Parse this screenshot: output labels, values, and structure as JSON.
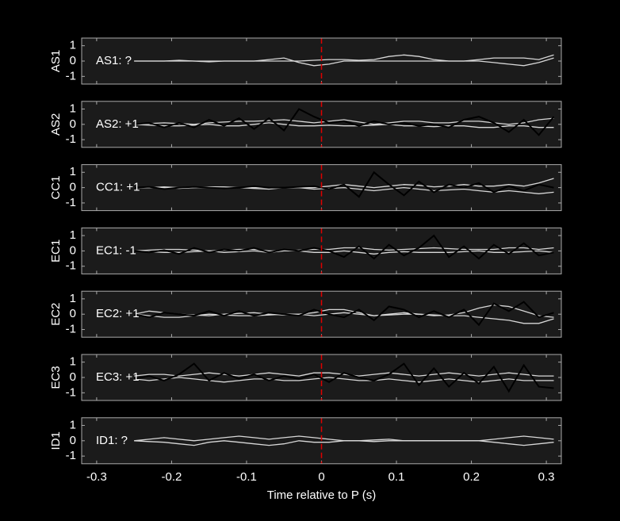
{
  "chart_data": [
    {
      "type": "line",
      "ylabel": "AS1",
      "annotation": "AS1: ?",
      "annotation_color": "#8c8c8c",
      "marker_x": 0,
      "xlim": [
        -0.32,
        0.32
      ],
      "xticks": [
        -0.3,
        -0.2,
        -0.1,
        0,
        0.1,
        0.2,
        0.3
      ],
      "ylim": [
        -1.5,
        1.5
      ],
      "yticks": [
        -1,
        0,
        1
      ],
      "x": [
        -0.25,
        -0.23,
        -0.21,
        -0.19,
        -0.17,
        -0.15,
        -0.13,
        -0.11,
        -0.09,
        -0.07,
        -0.05,
        -0.03,
        -0.01,
        0.01,
        0.03,
        0.05,
        0.07,
        0.09,
        0.11,
        0.13,
        0.15,
        0.17,
        0.19,
        0.21,
        0.23,
        0.25,
        0.27,
        0.29,
        0.31
      ],
      "series": [
        {
          "color": "#d8d8d8",
          "values": [
            0,
            0,
            0,
            0,
            0,
            0,
            0,
            0,
            0,
            0,
            0,
            0,
            0.05,
            0.1,
            0.1,
            0.05,
            0.1,
            0.3,
            0.4,
            0.3,
            0.1,
            0,
            0,
            0.1,
            0.2,
            0.2,
            0.2,
            0.1,
            0.4
          ]
        },
        {
          "color": "#d8d8d8",
          "values": [
            0,
            0,
            0,
            0.05,
            0,
            -0.05,
            0,
            0,
            0,
            0.1,
            0.2,
            -0.1,
            -0.3,
            -0.2,
            0,
            0,
            0,
            0,
            0,
            0,
            0,
            0,
            0,
            0,
            -0.1,
            -0.2,
            -0.3,
            -0.1,
            0.2
          ]
        }
      ]
    },
    {
      "type": "line",
      "ylabel": "AS2",
      "annotation": "AS2: +1",
      "annotation_color": "#c00000",
      "marker_x": 0,
      "xlim": [
        -0.32,
        0.32
      ],
      "xticks": [
        -0.3,
        -0.2,
        -0.1,
        0,
        0.1,
        0.2,
        0.3
      ],
      "ylim": [
        -1.5,
        1.5
      ],
      "yticks": [
        -1,
        0,
        1
      ],
      "x": [
        -0.25,
        -0.23,
        -0.21,
        -0.19,
        -0.17,
        -0.15,
        -0.13,
        -0.11,
        -0.09,
        -0.07,
        -0.05,
        -0.03,
        -0.01,
        0.01,
        0.03,
        0.05,
        0.07,
        0.09,
        0.11,
        0.13,
        0.15,
        0.17,
        0.19,
        0.21,
        0.23,
        0.25,
        0.27,
        0.29,
        0.31
      ],
      "series": [
        {
          "color": "#d8d8d8",
          "values": [
            0,
            0.05,
            0.1,
            0.05,
            0,
            0.1,
            0.15,
            0.2,
            0.2,
            0.25,
            0.3,
            0.2,
            0.1,
            0.2,
            0.3,
            0.15,
            0,
            0.1,
            0.2,
            0.2,
            0.1,
            0.1,
            0.2,
            0.2,
            0.1,
            0,
            0.1,
            0.3,
            0.4
          ]
        },
        {
          "color": "#d8d8d8",
          "values": [
            0,
            -0.05,
            -0.1,
            -0.1,
            -0.05,
            0,
            -0.1,
            -0.1,
            0,
            0.1,
            0,
            -0.1,
            -0.1,
            -0.05,
            -0.1,
            -0.1,
            -0.05,
            0,
            -0.1,
            -0.1,
            -0.15,
            -0.1,
            -0.1,
            -0.2,
            -0.2,
            -0.1,
            -0.1,
            -0.2,
            -0.2
          ]
        },
        {
          "color": "#000000",
          "values": [
            0,
            0.1,
            -0.2,
            0.1,
            -0.2,
            0.3,
            -0.1,
            0.4,
            -0.3,
            0.4,
            -0.4,
            1.0,
            0.5,
            0.1,
            0.2,
            -0.1,
            0.2,
            0,
            0.1,
            -0.1,
            0,
            -0.2,
            0.3,
            0.5,
            0.1,
            -0.5,
            0.3,
            -0.7,
            0.5
          ]
        }
      ]
    },
    {
      "type": "line",
      "ylabel": "CC1",
      "annotation": "CC1: +1",
      "annotation_color": "#c00000",
      "marker_x": 0,
      "xlim": [
        -0.32,
        0.32
      ],
      "xticks": [
        -0.3,
        -0.2,
        -0.1,
        0,
        0.1,
        0.2,
        0.3
      ],
      "ylim": [
        -1.5,
        1.5
      ],
      "yticks": [
        -1,
        0,
        1
      ],
      "x": [
        -0.25,
        -0.23,
        -0.21,
        -0.19,
        -0.17,
        -0.15,
        -0.13,
        -0.11,
        -0.09,
        -0.07,
        -0.05,
        -0.03,
        -0.01,
        0.01,
        0.03,
        0.05,
        0.07,
        0.09,
        0.11,
        0.13,
        0.15,
        0.17,
        0.19,
        0.21,
        0.23,
        0.25,
        0.27,
        0.29,
        0.31
      ],
      "series": [
        {
          "color": "#d8d8d8",
          "values": [
            0,
            0,
            0.05,
            0,
            0,
            0.05,
            0.05,
            0,
            0,
            0,
            0,
            0,
            0,
            0.1,
            0.2,
            0.1,
            0,
            0.1,
            0.2,
            0.15,
            0.05,
            0.1,
            0.2,
            0.1,
            0.1,
            0.2,
            0.1,
            0.3,
            0.6
          ]
        },
        {
          "color": "#d8d8d8",
          "values": [
            0,
            0,
            0,
            -0.05,
            0,
            0,
            -0.05,
            0,
            -0.05,
            -0.1,
            0,
            0,
            -0.1,
            -0.05,
            0,
            -0.1,
            -0.2,
            -0.1,
            0,
            -0.1,
            -0.2,
            -0.15,
            -0.1,
            -0.2,
            -0.3,
            -0.2,
            -0.3,
            -0.4,
            -0.3
          ]
        },
        {
          "color": "#000000",
          "values": [
            0,
            0.05,
            -0.1,
            0,
            0.05,
            0,
            -0.05,
            0,
            0.1,
            0,
            0,
            0.05,
            0.1,
            -0.1,
            0.2,
            -0.6,
            1.0,
            0.2,
            -0.5,
            0.4,
            -0.3,
            0.2,
            0,
            0.3,
            -0.3,
            0.1,
            -0.2,
            0.2,
            0
          ]
        }
      ]
    },
    {
      "type": "line",
      "ylabel": "EC1",
      "annotation": "EC1: -1",
      "annotation_color": "#1414c8",
      "marker_x": 0,
      "xlim": [
        -0.32,
        0.32
      ],
      "xticks": [
        -0.3,
        -0.2,
        -0.1,
        0,
        0.1,
        0.2,
        0.3
      ],
      "ylim": [
        -1.5,
        1.5
      ],
      "yticks": [
        -1,
        0,
        1
      ],
      "x": [
        -0.25,
        -0.23,
        -0.21,
        -0.19,
        -0.17,
        -0.15,
        -0.13,
        -0.11,
        -0.09,
        -0.07,
        -0.05,
        -0.03,
        -0.01,
        0.01,
        0.03,
        0.05,
        0.07,
        0.09,
        0.11,
        0.13,
        0.15,
        0.17,
        0.19,
        0.21,
        0.23,
        0.25,
        0.27,
        0.29,
        0.31
      ],
      "series": [
        {
          "color": "#d8d8d8",
          "values": [
            0,
            0.05,
            0.1,
            0.1,
            0.05,
            0,
            0.05,
            0.1,
            0.1,
            0,
            0,
            0.05,
            0.1,
            0.1,
            0.2,
            0.2,
            0.1,
            0.05,
            0.1,
            0.15,
            0.2,
            0.15,
            0.1,
            0.1,
            0.1,
            0.2,
            0.2,
            0.1,
            0.2
          ]
        },
        {
          "color": "#d8d8d8",
          "values": [
            0,
            -0.05,
            -0.1,
            -0.1,
            -0.05,
            0,
            -0.1,
            -0.05,
            0,
            -0.1,
            0,
            0,
            -0.1,
            -0.1,
            0,
            -0.1,
            -0.2,
            -0.1,
            -0.05,
            -0.1,
            -0.1,
            -0.1,
            -0.05,
            0,
            -0.1,
            -0.1,
            -0.05,
            0,
            -0.1
          ]
        },
        {
          "color": "#000000",
          "values": [
            0,
            -0.1,
            0.05,
            -0.2,
            0.2,
            -0.1,
            0.1,
            0,
            0.2,
            -0.1,
            0.1,
            0,
            0.2,
            0,
            -0.4,
            0.3,
            -0.5,
            0.4,
            -0.3,
            0.2,
            1.0,
            -0.4,
            0.3,
            -0.5,
            0.4,
            -0.2,
            0.5,
            -0.3,
            -0.1
          ]
        }
      ]
    },
    {
      "type": "line",
      "ylabel": "EC2",
      "annotation": "EC2: +1",
      "annotation_color": "#c00000",
      "marker_x": 0,
      "xlim": [
        -0.32,
        0.32
      ],
      "xticks": [
        -0.3,
        -0.2,
        -0.1,
        0,
        0.1,
        0.2,
        0.3
      ],
      "ylim": [
        -1.5,
        1.5
      ],
      "yticks": [
        -1,
        0,
        1
      ],
      "x": [
        -0.25,
        -0.23,
        -0.21,
        -0.19,
        -0.17,
        -0.15,
        -0.13,
        -0.11,
        -0.09,
        -0.07,
        -0.05,
        -0.03,
        -0.01,
        0.01,
        0.03,
        0.05,
        0.07,
        0.09,
        0.11,
        0.13,
        0.15,
        0.17,
        0.19,
        0.21,
        0.23,
        0.25,
        0.27,
        0.29,
        0.31
      ],
      "series": [
        {
          "color": "#d8d8d8",
          "values": [
            0,
            0.2,
            0.1,
            0,
            -0.05,
            -0.1,
            0,
            0.05,
            0.1,
            0,
            -0.05,
            0,
            0.1,
            0.3,
            0.3,
            0.1,
            -0.1,
            0,
            0.1,
            0,
            -0.1,
            -0.05,
            0.1,
            0.4,
            0.6,
            0.5,
            0.2,
            -0.1,
            -0.2
          ]
        },
        {
          "color": "#d8d8d8",
          "values": [
            0,
            -0.1,
            -0.2,
            -0.2,
            -0.1,
            0,
            -0.05,
            -0.1,
            -0.1,
            -0.05,
            0,
            0,
            -0.1,
            0,
            0.1,
            0,
            -0.1,
            -0.05,
            0,
            0,
            -0.05,
            -0.1,
            -0.1,
            -0.2,
            -0.3,
            -0.4,
            -0.6,
            -0.6,
            -0.3
          ]
        },
        {
          "color": "#000000",
          "values": [
            0,
            -0.2,
            0.1,
            0,
            -0.1,
            0.2,
            -0.1,
            0.2,
            -0.1,
            0.1,
            0,
            -0.1,
            0.3,
            0,
            -0.2,
            0.3,
            -0.4,
            0.5,
            0.3,
            -0.2,
            0.2,
            -0.2,
            0.3,
            -0.7,
            0.7,
            0.2,
            0.8,
            -0.2,
            0.1
          ]
        }
      ]
    },
    {
      "type": "line",
      "ylabel": "EC3",
      "annotation": "EC3: +1",
      "annotation_color": "#c00000",
      "marker_x": 0,
      "xlim": [
        -0.32,
        0.32
      ],
      "xticks": [
        -0.3,
        -0.2,
        -0.1,
        0,
        0.1,
        0.2,
        0.3
      ],
      "ylim": [
        -1.5,
        1.5
      ],
      "yticks": [
        -1,
        0,
        1
      ],
      "x": [
        -0.25,
        -0.23,
        -0.21,
        -0.19,
        -0.17,
        -0.15,
        -0.13,
        -0.11,
        -0.09,
        -0.07,
        -0.05,
        -0.03,
        -0.01,
        0.01,
        0.03,
        0.05,
        0.07,
        0.09,
        0.11,
        0.13,
        0.15,
        0.17,
        0.19,
        0.21,
        0.23,
        0.25,
        0.27,
        0.29,
        0.31
      ],
      "series": [
        {
          "color": "#d8d8d8",
          "values": [
            0.1,
            0.2,
            0.2,
            0.1,
            0.2,
            0.3,
            0.2,
            0.1,
            0.2,
            0.3,
            0.2,
            0.1,
            0.3,
            0.3,
            0.2,
            0.1,
            0.2,
            0.3,
            0.2,
            0.1,
            0.2,
            0.3,
            0.2,
            0.1,
            0.2,
            0.3,
            0.2,
            0.1,
            0.1
          ]
        },
        {
          "color": "#d8d8d8",
          "values": [
            -0.1,
            -0.2,
            -0.1,
            0,
            -0.1,
            -0.2,
            -0.3,
            -0.2,
            -0.1,
            -0.1,
            -0.2,
            -0.2,
            -0.1,
            0,
            -0.1,
            -0.2,
            -0.2,
            -0.1,
            -0.2,
            -0.3,
            -0.2,
            -0.1,
            -0.2,
            -0.3,
            -0.2,
            -0.1,
            -0.2,
            -0.2,
            -0.2
          ]
        },
        {
          "color": "#000000",
          "values": [
            -0.1,
            0.1,
            -0.2,
            0.2,
            0.9,
            -0.2,
            0.3,
            -0.1,
            0.2,
            -0.2,
            0.1,
            -0.1,
            0.2,
            -0.3,
            0.3,
            0,
            -0.2,
            0.2,
            0.9,
            -0.5,
            0.6,
            -0.6,
            0.3,
            -0.4,
            0.7,
            -0.9,
            0.8,
            -0.6,
            -0.7
          ]
        }
      ]
    },
    {
      "type": "line",
      "ylabel": "ID1",
      "annotation": "ID1: ?",
      "annotation_color": "#8c8c8c",
      "marker_x": 0,
      "xlabel": "Time relative to P (s)",
      "xlim": [
        -0.32,
        0.32
      ],
      "xticks": [
        -0.3,
        -0.2,
        -0.1,
        0,
        0.1,
        0.2,
        0.3
      ],
      "ylim": [
        -1.5,
        1.5
      ],
      "yticks": [
        -1,
        0,
        1
      ],
      "x": [
        -0.25,
        -0.23,
        -0.21,
        -0.19,
        -0.17,
        -0.15,
        -0.13,
        -0.11,
        -0.09,
        -0.07,
        -0.05,
        -0.03,
        -0.01,
        0.01,
        0.03,
        0.05,
        0.07,
        0.09,
        0.11,
        0.13,
        0.15,
        0.17,
        0.19,
        0.21,
        0.23,
        0.25,
        0.27,
        0.29,
        0.31
      ],
      "series": [
        {
          "color": "#d8d8d8",
          "values": [
            0,
            0.1,
            0.2,
            0.1,
            0,
            0.1,
            0.2,
            0.3,
            0.2,
            0.1,
            0.2,
            0.3,
            0.2,
            0.1,
            0,
            0,
            0.05,
            0.1,
            0,
            0,
            0,
            0,
            0,
            0,
            0.1,
            0.2,
            0.3,
            0.2,
            0.1
          ]
        },
        {
          "color": "#d8d8d8",
          "values": [
            0,
            -0.05,
            -0.1,
            -0.2,
            -0.3,
            -0.1,
            0,
            -0.1,
            -0.2,
            -0.3,
            -0.2,
            0,
            -0.1,
            -0.1,
            0,
            0,
            -0.05,
            0,
            0,
            0,
            0,
            0,
            0,
            0,
            -0.1,
            -0.2,
            -0.3,
            -0.2,
            -0.1
          ]
        }
      ]
    }
  ]
}
